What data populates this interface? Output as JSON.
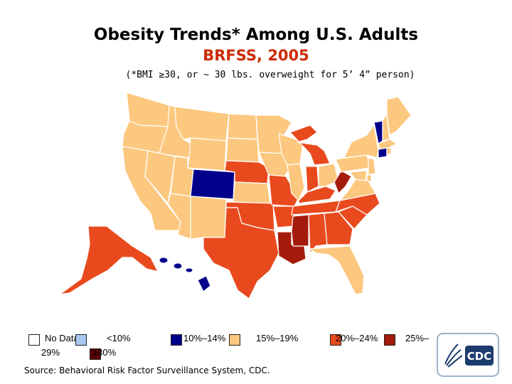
{
  "title": "Obesity Trends* Among U.S. Adults",
  "subtitle": "BRFSS, 2005",
  "note": "(*BMI ≥30, or ~ 30 lbs. overweight for 5’ 4” person)",
  "source": "Source: Behavioral Risk Factor Surveillance System, CDC.",
  "logo_text": "CDC",
  "colors": {
    "no_data": "#ffffff",
    "lt10": "#a6c8f0",
    "r10_14": "#00008b",
    "r15_19": "#fcc77e",
    "r20_24": "#e84a1e",
    "r25_29": "#a51b0b",
    "ge30": "#5a0000",
    "border": "#ffffff"
  },
  "legend": {
    "no_data": "No Data",
    "lt10": "<10%",
    "r10_14": "10%–14%",
    "r15_19": "15%–19%",
    "r20_24": "20%–24%",
    "r25_29": "25%–",
    "r25_29_end": "29%",
    "ge30": "≥30%"
  },
  "states": [
    {
      "name": "WA",
      "cls": "r15_19"
    },
    {
      "name": "OR",
      "cls": "r15_19"
    },
    {
      "name": "CA",
      "cls": "r15_19"
    },
    {
      "name": "ID",
      "cls": "r15_19"
    },
    {
      "name": "NV",
      "cls": "r15_19"
    },
    {
      "name": "MT",
      "cls": "r15_19"
    },
    {
      "name": "WY",
      "cls": "r15_19"
    },
    {
      "name": "UT",
      "cls": "r15_19"
    },
    {
      "name": "AZ",
      "cls": "r15_19"
    },
    {
      "name": "CO",
      "cls": "r10_14"
    },
    {
      "name": "NM",
      "cls": "r15_19"
    },
    {
      "name": "ND",
      "cls": "r15_19"
    },
    {
      "name": "SD",
      "cls": "r15_19"
    },
    {
      "name": "NE",
      "cls": "r20_24"
    },
    {
      "name": "KS",
      "cls": "r15_19"
    },
    {
      "name": "OK",
      "cls": "r20_24"
    },
    {
      "name": "TX",
      "cls": "r20_24"
    },
    {
      "name": "MN",
      "cls": "r15_19"
    },
    {
      "name": "IA",
      "cls": "r15_19"
    },
    {
      "name": "MO",
      "cls": "r20_24"
    },
    {
      "name": "AR",
      "cls": "r20_24"
    },
    {
      "name": "LA",
      "cls": "r25_29"
    },
    {
      "name": "WI",
      "cls": "r15_19"
    },
    {
      "name": "IL",
      "cls": "r15_19"
    },
    {
      "name": "MI",
      "cls": "r20_24"
    },
    {
      "name": "IN",
      "cls": "r20_24"
    },
    {
      "name": "OH",
      "cls": "r15_19"
    },
    {
      "name": "KY",
      "cls": "r20_24"
    },
    {
      "name": "TN",
      "cls": "r20_24"
    },
    {
      "name": "MS",
      "cls": "r25_29"
    },
    {
      "name": "AL",
      "cls": "r20_24"
    },
    {
      "name": "GA",
      "cls": "r20_24"
    },
    {
      "name": "FL",
      "cls": "r15_19"
    },
    {
      "name": "SC",
      "cls": "r20_24"
    },
    {
      "name": "NC",
      "cls": "r20_24"
    },
    {
      "name": "VA",
      "cls": "r15_19"
    },
    {
      "name": "WV",
      "cls": "r25_29"
    },
    {
      "name": "PA",
      "cls": "r15_19"
    },
    {
      "name": "NY",
      "cls": "r15_19"
    },
    {
      "name": "VT",
      "cls": "r10_14"
    },
    {
      "name": "NH",
      "cls": "r15_19"
    },
    {
      "name": "ME",
      "cls": "r15_19"
    },
    {
      "name": "MA",
      "cls": "r15_19"
    },
    {
      "name": "CT",
      "cls": "r10_14"
    },
    {
      "name": "RI",
      "cls": "r15_19"
    },
    {
      "name": "NJ",
      "cls": "r15_19"
    },
    {
      "name": "DE",
      "cls": "r15_19"
    },
    {
      "name": "MD",
      "cls": "r15_19"
    },
    {
      "name": "AK",
      "cls": "r20_24"
    },
    {
      "name": "HI",
      "cls": "r10_14"
    }
  ]
}
